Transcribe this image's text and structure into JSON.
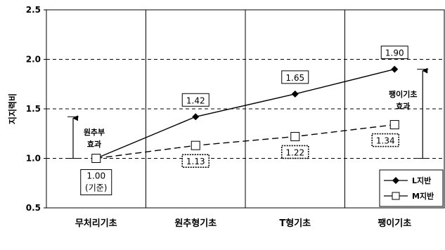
{
  "chart_data": {
    "type": "line",
    "ylabel": "지지력비",
    "ylim": [
      0.5,
      2.5
    ],
    "yticks": [
      "0.5",
      "1.0",
      "1.5",
      "2.0",
      "2.5"
    ],
    "categories": [
      "무처리기초",
      "원추형기초",
      "T형기초",
      "팽이기초"
    ],
    "series": [
      {
        "name": "L지반",
        "values": [
          1.0,
          1.42,
          1.65,
          1.9
        ],
        "labels": [
          "1.00",
          "1.42",
          "1.65",
          "1.90"
        ],
        "marker": "diamond",
        "dash": "solid",
        "color": "#000000"
      },
      {
        "name": "M지반",
        "values": [
          1.0,
          1.13,
          1.22,
          1.34
        ],
        "labels": [
          "",
          "1.13",
          "1.22",
          "1.34"
        ],
        "marker": "square",
        "dash": "dashed",
        "color": "#000000"
      }
    ],
    "base_note": "(기준)",
    "annotations": [
      {
        "lines": [
          "원추부",
          "효과"
        ],
        "category_index": 0,
        "from": 1.0,
        "to": 1.42
      },
      {
        "lines": [
          "팽이기초",
          "효과"
        ],
        "category_index": 3,
        "from": 1.0,
        "to": 1.9
      }
    ],
    "grid": "dashed-horizontal",
    "legend_position": "bottom-right"
  }
}
